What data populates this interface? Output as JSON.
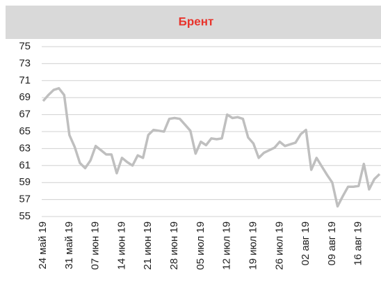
{
  "chart_data": {
    "type": "line",
    "title": "Брент",
    "categories": [
      "24 май 19",
      null,
      null,
      null,
      null,
      "31 май 19",
      null,
      null,
      null,
      null,
      "07 июн 19",
      null,
      null,
      null,
      null,
      "14 июн 19",
      null,
      null,
      null,
      null,
      "21 июн 19",
      null,
      null,
      null,
      null,
      "28 июн 19",
      null,
      null,
      null,
      null,
      "05 июл 19",
      null,
      null,
      null,
      null,
      "12 июл 19",
      null,
      null,
      null,
      null,
      "19 июл 19",
      null,
      null,
      null,
      null,
      "26 июл 19",
      null,
      null,
      null,
      null,
      "02 авг 19",
      null,
      null,
      null,
      null,
      "09 авг 19",
      null,
      null,
      null,
      null,
      "16 авг 19",
      null,
      null,
      null,
      null
    ],
    "series": [
      {
        "color": "#bfbfbf",
        "values": [
          68.6,
          69.3,
          69.9,
          70.1,
          69.3,
          64.6,
          63.2,
          61.3,
          60.7,
          61.6,
          63.3,
          62.8,
          62.3,
          62.3,
          60.1,
          61.9,
          61.4,
          61.0,
          62.2,
          61.9,
          64.6,
          65.2,
          65.1,
          65.0,
          66.5,
          66.6,
          66.5,
          65.8,
          65.1,
          62.4,
          63.8,
          63.4,
          64.2,
          64.1,
          64.2,
          67.0,
          66.6,
          66.7,
          66.5,
          64.3,
          63.6,
          61.9,
          62.5,
          62.8,
          63.1,
          63.8,
          63.3,
          63.5,
          63.7,
          64.7,
          65.2,
          60.5,
          61.9,
          60.9,
          59.9,
          59.0,
          56.2,
          57.4,
          58.5,
          58.5,
          58.6,
          61.2,
          58.2,
          59.4,
          60.0
        ]
      }
    ],
    "ylim": [
      55,
      75
    ],
    "yticks": [
      55,
      57,
      59,
      61,
      63,
      65,
      67,
      69,
      71,
      73,
      75
    ],
    "grid": true
  }
}
